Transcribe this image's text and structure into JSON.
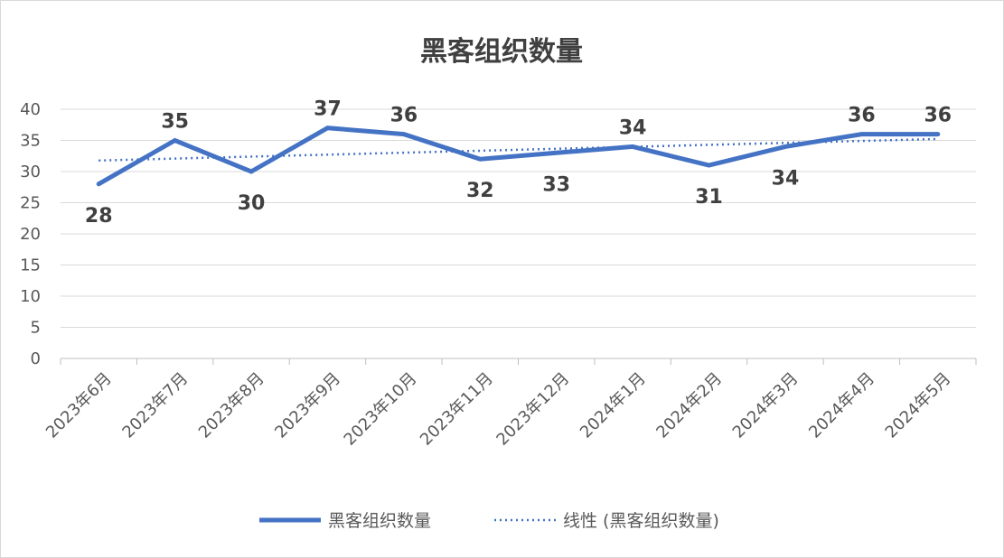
{
  "chart_data": {
    "type": "line",
    "title": "黑客组织数量",
    "categories": [
      "2023年6月",
      "2023年7月",
      "2023年8月",
      "2023年9月",
      "2023年10月",
      "2023年11月",
      "2023年12月",
      "2024年1月",
      "2024年2月",
      "2024年3月",
      "2024年4月",
      "2024年5月"
    ],
    "series": [
      {
        "name": "黑客组织数量",
        "values": [
          28,
          35,
          30,
          37,
          36,
          32,
          33,
          34,
          31,
          34,
          36,
          36
        ],
        "color": "#4472c4"
      }
    ],
    "trendline": {
      "name": "线性 (黑客组织数量)",
      "type": "linear",
      "color": "#4472c4"
    },
    "ylim": [
      0,
      40
    ],
    "yticks": [
      0,
      5,
      10,
      15,
      20,
      25,
      30,
      35,
      40
    ],
    "grid": true,
    "legend_position": "bottom"
  }
}
